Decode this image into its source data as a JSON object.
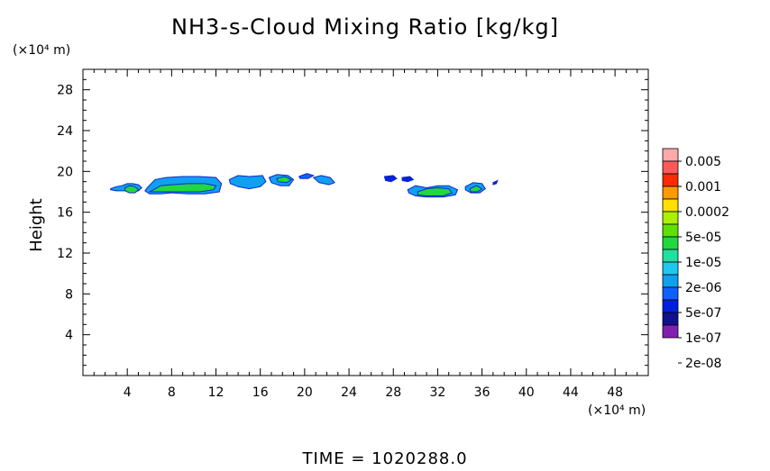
{
  "chart_data": {
    "type": "heatmap",
    "title": "NH3-s-Cloud Mixing Ratio [kg/kg]",
    "ylabel": "Height",
    "y_unit": "(×10⁴ m)",
    "x_unit": "(×10⁴ m)",
    "xlim": [
      0,
      51
    ],
    "ylim": [
      0,
      30
    ],
    "x_ticks": [
      4,
      8,
      12,
      16,
      20,
      24,
      28,
      32,
      36,
      40,
      44,
      48
    ],
    "x_tick_labels": [
      "4",
      "8",
      "12",
      "16",
      "20",
      "24",
      "28",
      "32",
      "36",
      "40",
      "44",
      "48"
    ],
    "y_ticks": [
      4,
      8,
      12,
      16,
      20,
      24,
      28
    ],
    "y_tick_labels": [
      "4",
      "8",
      "12",
      "16",
      "20",
      "24",
      "28"
    ],
    "footer": "TIME  =  1020288.0",
    "legend": {
      "labels": [
        "0.005",
        "0.001",
        "0.0002",
        "5e-05",
        "1e-05",
        "2e-06",
        "5e-07",
        "1e-07",
        "2e-08"
      ],
      "colors": [
        "#ffaaaa",
        "#ff5a5a",
        "#ff2a00",
        "#ff9a00",
        "#ffe000",
        "#aaf000",
        "#60e000",
        "#20d840",
        "#20e0a0",
        "#20c8f0",
        "#10a0f0",
        "#1060ff",
        "#0020e0",
        "#101090",
        "#8020b0"
      ]
    },
    "cloud_patches": [
      {
        "x": [
          2.5,
          3.0,
          3.5,
          4.0,
          4.5,
          5.0,
          5.3,
          5.0,
          4.5,
          4.0,
          3.5,
          3.0,
          2.5
        ],
        "y": [
          18.3,
          18.5,
          18.6,
          18.8,
          18.8,
          18.7,
          18.4,
          18.1,
          18.0,
          18.1,
          18.1,
          18.1,
          18.2
        ],
        "color": "#10a0f0"
      },
      {
        "x": [
          3.8,
          4.2,
          4.7,
          5.0,
          4.7,
          4.2,
          3.8
        ],
        "y": [
          18.4,
          18.6,
          18.5,
          18.2,
          17.9,
          17.9,
          18.1
        ],
        "color": "#20d840"
      },
      {
        "x": [
          5.8,
          6.5,
          7.5,
          9.0,
          10.5,
          12.0,
          12.5,
          12.3,
          11.0,
          9.5,
          8.0,
          7.0,
          6.0,
          5.6
        ],
        "y": [
          18.4,
          19.2,
          19.4,
          19.5,
          19.5,
          19.4,
          18.8,
          18.0,
          17.8,
          17.8,
          17.9,
          17.8,
          17.8,
          18.1
        ],
        "color": "#10a0f0"
      },
      {
        "x": [
          6.2,
          7.0,
          8.0,
          9.5,
          11.0,
          12.0,
          11.8,
          10.5,
          9.0,
          7.5,
          6.5,
          6.0
        ],
        "y": [
          18.1,
          18.6,
          18.7,
          18.8,
          18.8,
          18.6,
          18.2,
          18.0,
          18.0,
          18.0,
          18.0,
          18.0
        ],
        "color": "#20d840"
      },
      {
        "x": [
          13.2,
          14.0,
          15.0,
          16.2,
          16.5,
          16.0,
          15.0,
          14.0,
          13.3
        ],
        "y": [
          19.2,
          19.6,
          19.5,
          19.6,
          19.0,
          18.5,
          18.3,
          18.5,
          18.8
        ],
        "color": "#10a0f0"
      },
      {
        "x": [
          16.8,
          17.5,
          18.5,
          19.0,
          18.6,
          17.8,
          17.0
        ],
        "y": [
          19.4,
          19.7,
          19.6,
          19.2,
          18.6,
          18.6,
          18.9
        ],
        "color": "#10a0f0"
      },
      {
        "x": [
          17.5,
          18.2,
          18.8,
          18.4,
          17.6
        ],
        "y": [
          19.3,
          19.5,
          19.2,
          18.9,
          19.0
        ],
        "color": "#20d840"
      },
      {
        "x": [
          20.8,
          21.5,
          22.3,
          22.7,
          22.2,
          21.3
        ],
        "y": [
          19.4,
          19.6,
          19.4,
          18.9,
          18.7,
          18.9
        ],
        "color": "#10a0f0"
      },
      {
        "x": [
          19.5,
          20.2,
          20.8,
          20.3,
          19.6
        ],
        "y": [
          19.5,
          19.8,
          19.6,
          19.3,
          19.3
        ],
        "color": "#1060ff"
      },
      {
        "x": [
          27.2,
          28.0,
          28.3,
          27.8,
          27.3
        ],
        "y": [
          19.5,
          19.6,
          19.3,
          19.0,
          19.1
        ],
        "color": "#0020e0"
      },
      {
        "x": [
          28.8,
          29.5,
          29.8,
          29.3,
          28.8
        ],
        "y": [
          19.4,
          19.5,
          19.2,
          19.0,
          19.1
        ],
        "color": "#0020e0"
      },
      {
        "x": [
          29.3,
          30.0,
          31.0,
          32.0,
          33.0,
          33.8,
          33.6,
          32.5,
          31.0,
          30.0,
          29.4
        ],
        "y": [
          18.2,
          18.6,
          18.4,
          18.6,
          18.6,
          18.2,
          17.7,
          17.5,
          17.5,
          17.6,
          17.9
        ],
        "color": "#10a0f0"
      },
      {
        "x": [
          30.2,
          31.0,
          32.0,
          33.0,
          33.3,
          32.5,
          31.0,
          30.2
        ],
        "y": [
          18.0,
          18.3,
          18.4,
          18.3,
          17.9,
          17.6,
          17.6,
          17.7
        ],
        "color": "#20d840"
      },
      {
        "x": [
          34.5,
          35.2,
          36.0,
          36.3,
          35.8,
          35.0,
          34.5
        ],
        "y": [
          18.5,
          18.9,
          18.8,
          18.3,
          17.9,
          17.9,
          18.2
        ],
        "color": "#10a0f0"
      },
      {
        "x": [
          34.9,
          35.5,
          36.0,
          35.6,
          35.0
        ],
        "y": [
          18.3,
          18.6,
          18.3,
          18.0,
          18.0
        ],
        "color": "#20d840"
      },
      {
        "x": [
          37.0,
          37.4,
          37.3,
          37.0
        ],
        "y": [
          18.9,
          19.1,
          18.8,
          18.7
        ],
        "color": "#0020e0"
      }
    ]
  }
}
